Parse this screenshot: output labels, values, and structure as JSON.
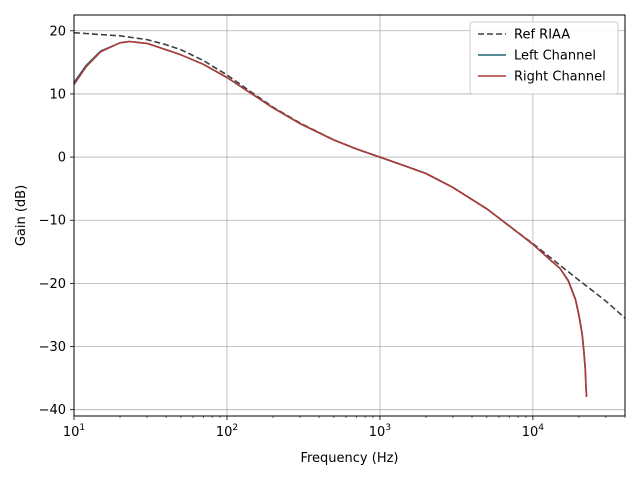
{
  "chart_data": {
    "type": "line",
    "xlabel": "Frequency (Hz)",
    "ylabel": "Gain (dB)",
    "xscale": "log",
    "xlim": [
      10,
      40000
    ],
    "ylim": [
      -41,
      22.5
    ],
    "grid": true,
    "legend_position": "top-right",
    "x_ticks": [
      {
        "value": 10,
        "base": "10",
        "exp": "1"
      },
      {
        "value": 100,
        "base": "10",
        "exp": "2"
      },
      {
        "value": 1000,
        "base": "10",
        "exp": "3"
      },
      {
        "value": 10000,
        "base": "10",
        "exp": "4"
      }
    ],
    "y_ticks": [
      {
        "value": 20,
        "label": "20"
      },
      {
        "value": 10,
        "label": "10"
      },
      {
        "value": 0,
        "label": "0"
      },
      {
        "value": -10,
        "label": "−10"
      },
      {
        "value": -20,
        "label": "−20"
      },
      {
        "value": -30,
        "label": "−30"
      },
      {
        "value": -40,
        "label": "−40"
      }
    ],
    "series": [
      {
        "name": "Ref RIAA",
        "color": "#404040",
        "dash": "dashed",
        "x": [
          10,
          15,
          20,
          30,
          40,
          50,
          70,
          100,
          150,
          200,
          300,
          500,
          700,
          1000,
          1500,
          2000,
          3000,
          5000,
          7000,
          10000,
          15000,
          20000,
          30000,
          40000
        ],
        "y": [
          19.7,
          19.4,
          19.2,
          18.6,
          17.8,
          17.0,
          15.3,
          13.0,
          10.0,
          7.9,
          5.4,
          2.7,
          1.3,
          0.0,
          -1.5,
          -2.6,
          -4.8,
          -8.2,
          -10.9,
          -13.7,
          -17.1,
          -19.5,
          -22.8,
          -25.5
        ]
      },
      {
        "name": "Left Channel",
        "color": "#1b6670",
        "dash": "solid",
        "x": [
          10,
          12,
          15,
          20,
          23,
          30,
          40,
          50,
          70,
          100,
          150,
          200,
          300,
          500,
          700,
          1000,
          1500,
          2000,
          3000,
          5000,
          7000,
          10000,
          13000,
          15000,
          17000,
          19000,
          20000,
          21000,
          21500,
          22000,
          22200,
          22400
        ],
        "y": [
          11.8,
          14.5,
          16.8,
          18.1,
          18.3,
          18.0,
          17.0,
          16.2,
          14.7,
          12.6,
          9.8,
          7.8,
          5.3,
          2.7,
          1.3,
          0.0,
          -1.5,
          -2.6,
          -4.8,
          -8.2,
          -10.9,
          -13.8,
          -16.3,
          -17.6,
          -19.5,
          -22.5,
          -25.0,
          -28.0,
          -30.5,
          -33.5,
          -36.0,
          -37.8
        ]
      },
      {
        "name": "Right Channel",
        "color": "#b03a3a",
        "dash": "solid",
        "x": [
          10,
          12,
          15,
          20,
          23,
          30,
          40,
          50,
          70,
          100,
          150,
          200,
          300,
          500,
          700,
          1000,
          1500,
          2000,
          3000,
          5000,
          7000,
          10000,
          13000,
          15000,
          17000,
          19000,
          20000,
          21000,
          21500,
          22000,
          22200,
          22400
        ],
        "y": [
          11.5,
          14.3,
          16.7,
          18.1,
          18.3,
          18.0,
          17.0,
          16.2,
          14.7,
          12.6,
          9.8,
          7.8,
          5.3,
          2.7,
          1.3,
          0.0,
          -1.5,
          -2.6,
          -4.8,
          -8.2,
          -10.9,
          -13.8,
          -16.3,
          -17.6,
          -19.6,
          -22.6,
          -25.2,
          -28.2,
          -30.8,
          -33.8,
          -36.3,
          -38.0
        ]
      }
    ]
  }
}
